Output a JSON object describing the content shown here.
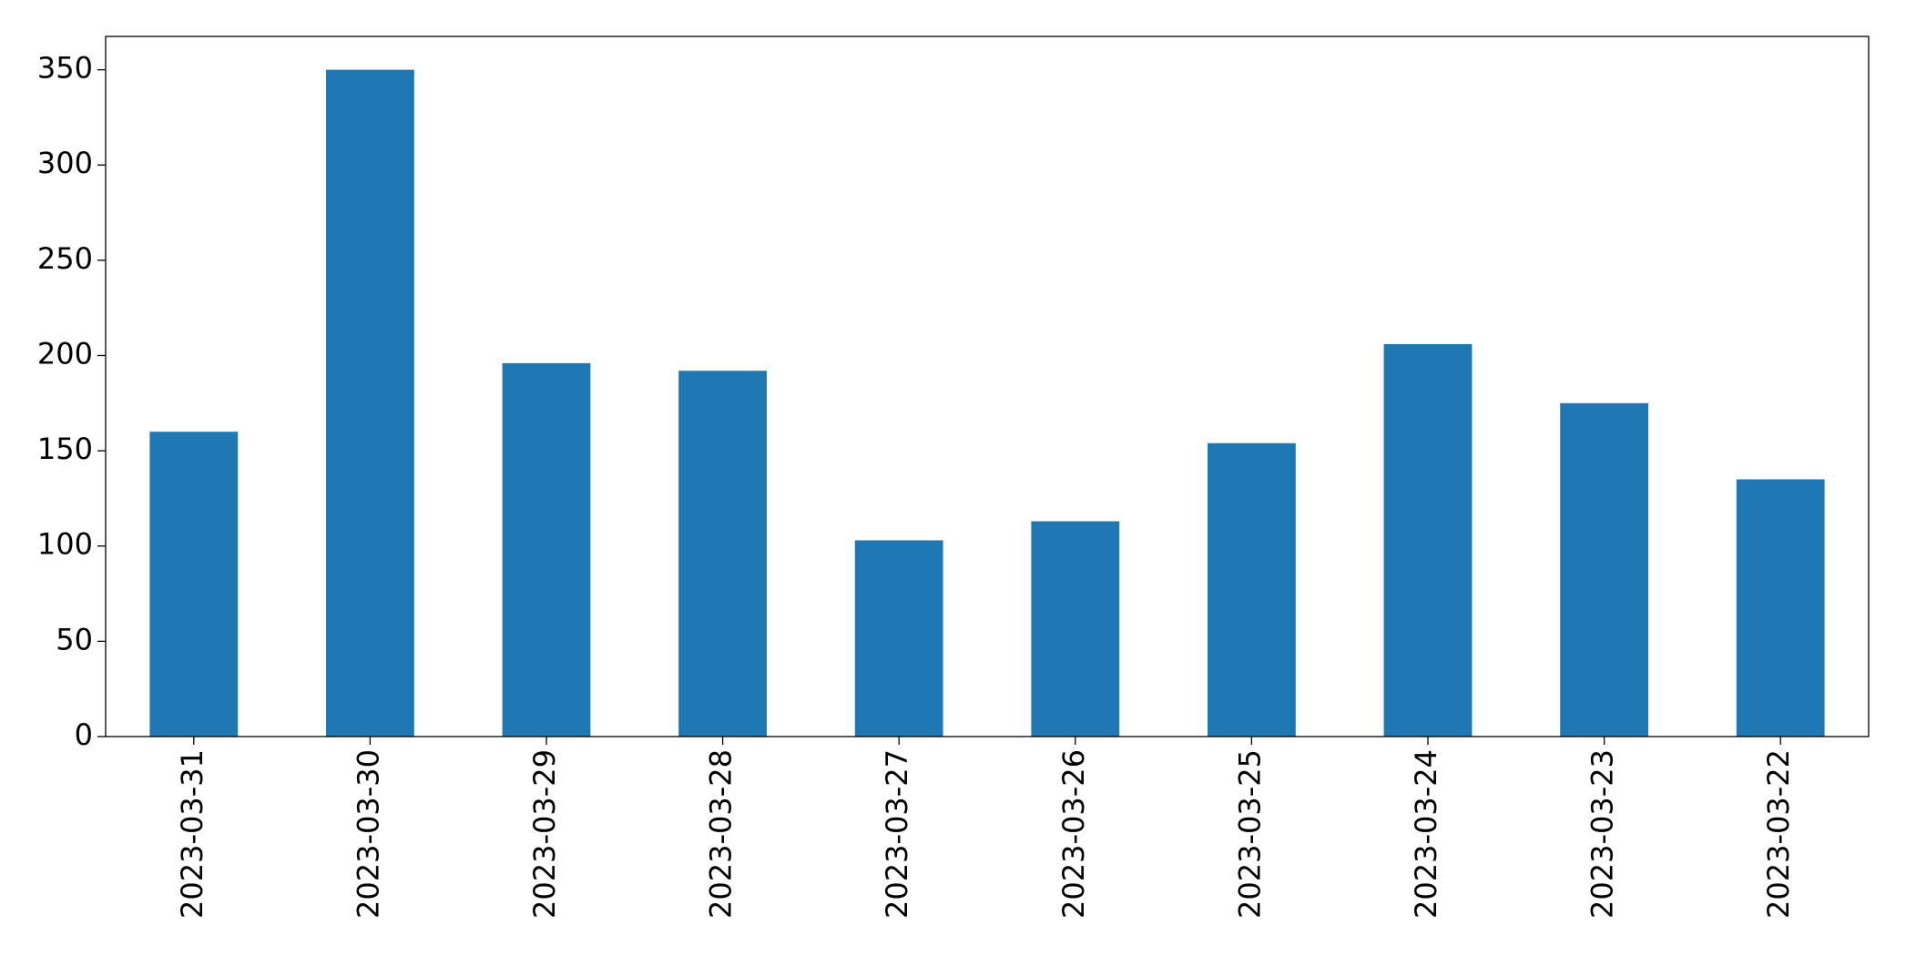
{
  "chart_data": {
    "type": "bar",
    "categories": [
      "2023-03-31",
      "2023-03-30",
      "2023-03-29",
      "2023-03-28",
      "2023-03-27",
      "2023-03-26",
      "2023-03-25",
      "2023-03-24",
      "2023-03-23",
      "2023-03-22"
    ],
    "values": [
      160,
      350,
      196,
      192,
      103,
      113,
      154,
      206,
      175,
      135
    ],
    "color": "#1f77b4",
    "ylim": [
      0,
      367.5
    ],
    "yticks": [
      0,
      50,
      100,
      150,
      200,
      250,
      300,
      350
    ],
    "grid": false
  }
}
